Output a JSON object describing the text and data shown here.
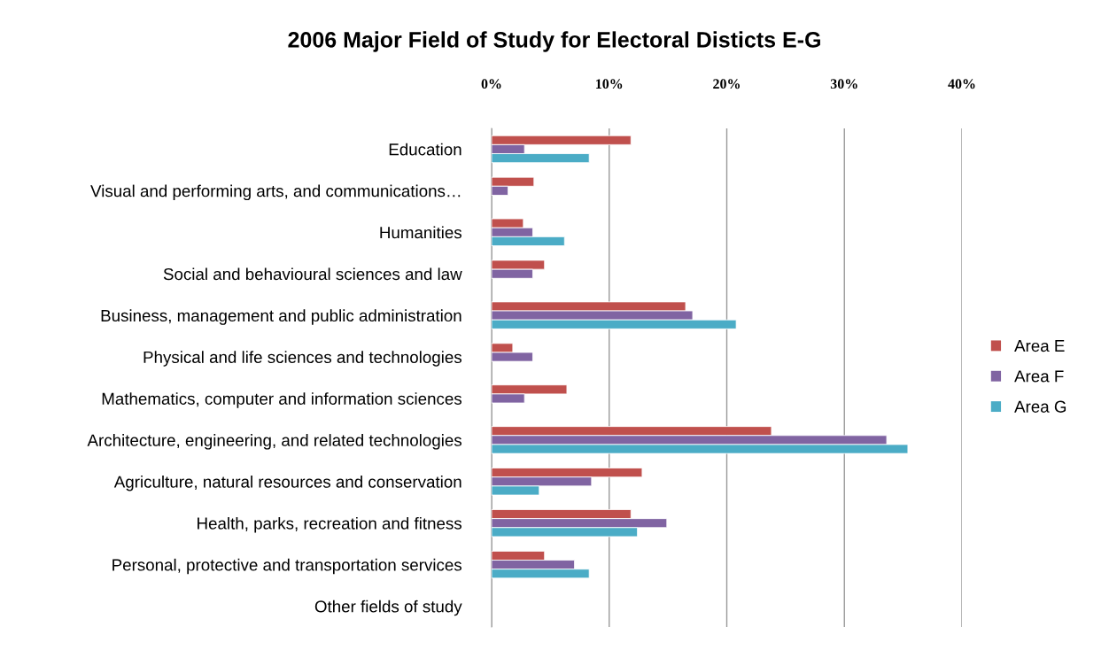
{
  "chart_data": {
    "type": "bar",
    "orientation": "horizontal",
    "title": "2006 Major Field of Study for Electoral Disticts E-G",
    "categories": [
      "Education",
      "Visual and performing arts, and communications…",
      "Humanities",
      "Social and behavioural sciences and law",
      "Business, management and public administration",
      "Physical and life sciences and technologies",
      "Mathematics, computer and information sciences",
      "Architecture, engineering, and related technologies",
      "Agriculture, natural resources and conservation",
      "Health, parks, recreation and fitness",
      "Personal, protective and transportation services",
      "Other fields of study"
    ],
    "series": [
      {
        "name": "Area E",
        "color": "#c0504d",
        "values": [
          11.85,
          3.6,
          2.7,
          4.5,
          16.5,
          1.8,
          6.4,
          23.8,
          12.8,
          11.85,
          4.5,
          null
        ]
      },
      {
        "name": "Area F",
        "color": "#8064a2",
        "values": [
          2.8,
          1.4,
          3.5,
          3.5,
          17.1,
          3.5,
          2.8,
          33.6,
          8.5,
          14.9,
          7.05,
          null
        ]
      },
      {
        "name": "Area G",
        "color": "#4bacc6",
        "values": [
          8.3,
          null,
          6.2,
          null,
          20.8,
          null,
          null,
          35.4,
          4.05,
          12.4,
          8.3,
          null
        ]
      }
    ],
    "xlim": [
      0,
      40
    ],
    "xticks": [
      {
        "value": 0,
        "label": "0%"
      },
      {
        "value": 10,
        "label": "10%"
      },
      {
        "value": 20,
        "label": "20%"
      },
      {
        "value": 30,
        "label": "30%"
      },
      {
        "value": 40,
        "label": "40%"
      }
    ],
    "grid": "x",
    "legend": "right"
  }
}
